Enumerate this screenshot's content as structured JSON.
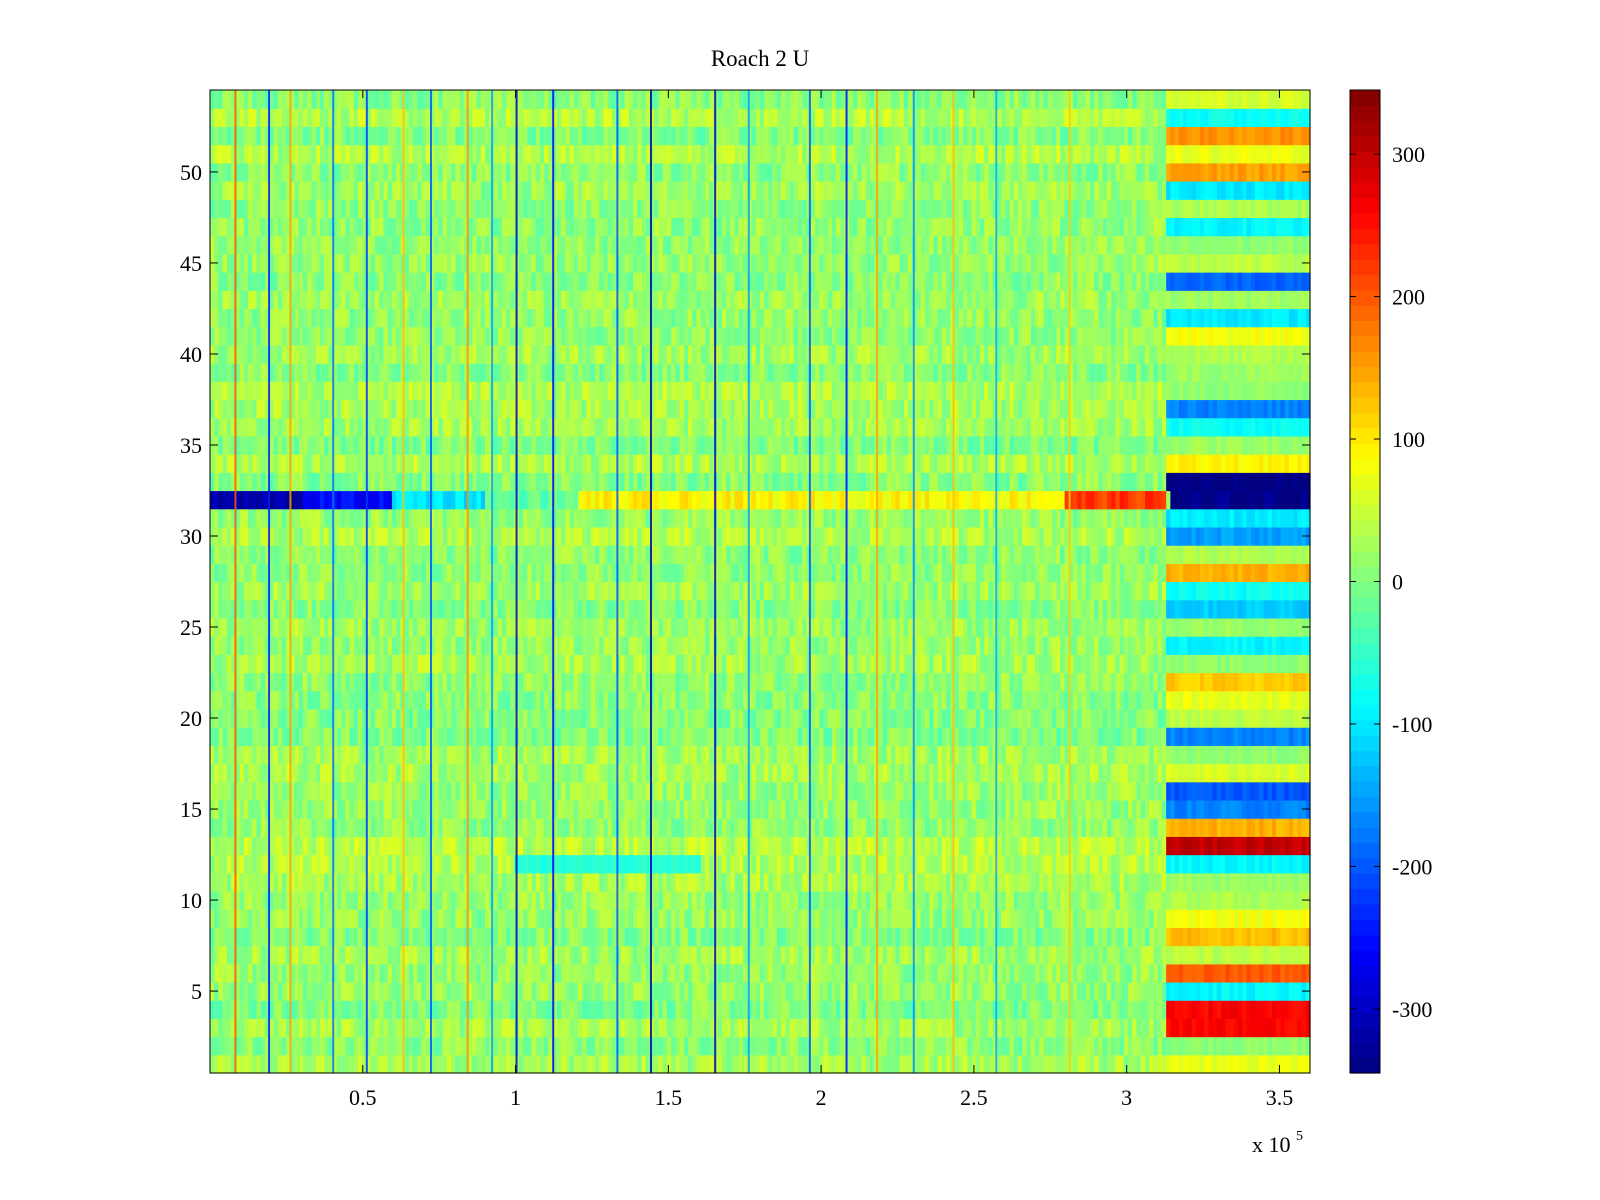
{
  "chart_data": {
    "type": "heatmap",
    "title": "Roach 2 U",
    "xlabel": "",
    "ylabel": "",
    "xlim": [
      0,
      360000
    ],
    "ylim": [
      0.5,
      54.5
    ],
    "rows": 54,
    "x_multiplier_label": "x 10",
    "x_multiplier_exponent": "5",
    "x_ticks": [
      {
        "value": 50000,
        "label": "0.5"
      },
      {
        "value": 100000,
        "label": "1"
      },
      {
        "value": 150000,
        "label": "1.5"
      },
      {
        "value": 200000,
        "label": "2"
      },
      {
        "value": 250000,
        "label": "2.5"
      },
      {
        "value": 300000,
        "label": "3"
      },
      {
        "value": 350000,
        "label": "3.5"
      }
    ],
    "y_ticks": [
      {
        "value": 5,
        "label": "5"
      },
      {
        "value": 10,
        "label": "10"
      },
      {
        "value": 15,
        "label": "15"
      },
      {
        "value": 20,
        "label": "20"
      },
      {
        "value": 25,
        "label": "25"
      },
      {
        "value": 30,
        "label": "30"
      },
      {
        "value": 35,
        "label": "35"
      },
      {
        "value": 40,
        "label": "40"
      },
      {
        "value": 45,
        "label": "45"
      },
      {
        "value": 50,
        "label": "50"
      }
    ],
    "colorbar": {
      "colormap": "jet",
      "clim": [
        -345,
        345
      ],
      "ticks": [
        {
          "value": 300,
          "label": "300"
        },
        {
          "value": 200,
          "label": "200"
        },
        {
          "value": 100,
          "label": "100"
        },
        {
          "value": 0,
          "label": "0"
        },
        {
          "value": -100,
          "label": "-100"
        },
        {
          "value": -200,
          "label": "-200"
        },
        {
          "value": -300,
          "label": "-300"
        }
      ]
    },
    "transition_x": 313000,
    "background_level": 20,
    "highlighted_row": {
      "row": 32,
      "segments": [
        {
          "x0": 0,
          "x1": 30000,
          "value": -320
        },
        {
          "x0": 30000,
          "x1": 60000,
          "value": -260
        },
        {
          "x0": 60000,
          "x1": 90000,
          "value": -100
        },
        {
          "x0": 90000,
          "x1": 120000,
          "value": -20
        },
        {
          "x0": 120000,
          "x1": 280000,
          "value": 90
        },
        {
          "x0": 280000,
          "x1": 313000,
          "value": 220
        },
        {
          "x0": 315000,
          "x1": 360000,
          "value": -345
        }
      ]
    },
    "right_region_rows": [
      {
        "row": 1,
        "value": 70
      },
      {
        "row": 2,
        "value": 10
      },
      {
        "row": 3,
        "value": 260
      },
      {
        "row": 4,
        "value": 260
      },
      {
        "row": 5,
        "value": -90
      },
      {
        "row": 6,
        "value": 200
      },
      {
        "row": 7,
        "value": 40
      },
      {
        "row": 8,
        "value": 130
      },
      {
        "row": 9,
        "value": 80
      },
      {
        "row": 10,
        "value": 30
      },
      {
        "row": 11,
        "value": 20
      },
      {
        "row": 12,
        "value": -90
      },
      {
        "row": 13,
        "value": 300
      },
      {
        "row": 14,
        "value": 140
      },
      {
        "row": 15,
        "value": -170
      },
      {
        "row": 16,
        "value": -200
      },
      {
        "row": 17,
        "value": 60
      },
      {
        "row": 18,
        "value": 10
      },
      {
        "row": 19,
        "value": -170
      },
      {
        "row": 20,
        "value": 40
      },
      {
        "row": 21,
        "value": 70
      },
      {
        "row": 22,
        "value": 120
      },
      {
        "row": 23,
        "value": 10
      },
      {
        "row": 24,
        "value": -90
      },
      {
        "row": 25,
        "value": 20
      },
      {
        "row": 26,
        "value": -120
      },
      {
        "row": 27,
        "value": -80
      },
      {
        "row": 28,
        "value": 140
      },
      {
        "row": 29,
        "value": 30
      },
      {
        "row": 30,
        "value": -150
      },
      {
        "row": 31,
        "value": -100
      },
      {
        "row": 33,
        "value": -345
      },
      {
        "row": 34,
        "value": 90
      },
      {
        "row": 35,
        "value": 20
      },
      {
        "row": 36,
        "value": -80
      },
      {
        "row": 37,
        "value": -170
      },
      {
        "row": 38,
        "value": 10
      },
      {
        "row": 39,
        "value": 20
      },
      {
        "row": 40,
        "value": 30
      },
      {
        "row": 41,
        "value": 80
      },
      {
        "row": 42,
        "value": -100
      },
      {
        "row": 43,
        "value": 20
      },
      {
        "row": 44,
        "value": -190
      },
      {
        "row": 45,
        "value": 40
      },
      {
        "row": 46,
        "value": 10
      },
      {
        "row": 47,
        "value": -90
      },
      {
        "row": 48,
        "value": 30
      },
      {
        "row": 49,
        "value": -100
      },
      {
        "row": 50,
        "value": 150
      },
      {
        "row": 51,
        "value": 70
      },
      {
        "row": 52,
        "value": 160
      },
      {
        "row": 53,
        "value": -80
      },
      {
        "row": 54,
        "value": 60
      }
    ],
    "left_region_rows": [
      {
        "row": 12,
        "x0": 100000,
        "x1": 160000,
        "value": -60
      }
    ],
    "vertical_streaks": [
      {
        "x": 8000,
        "value": 200
      },
      {
        "x": 19000,
        "value": -240
      },
      {
        "x": 26000,
        "value": 150
      },
      {
        "x": 40000,
        "value": -180
      },
      {
        "x": 51000,
        "value": -220
      },
      {
        "x": 63000,
        "value": 130
      },
      {
        "x": 72000,
        "value": -200
      },
      {
        "x": 84000,
        "value": 160
      },
      {
        "x": 92000,
        "value": -150
      },
      {
        "x": 100000,
        "value": -300
      },
      {
        "x": 112000,
        "value": -260
      },
      {
        "x": 133000,
        "value": -200
      },
      {
        "x": 144000,
        "value": -320
      },
      {
        "x": 165000,
        "value": -300
      },
      {
        "x": 176000,
        "value": -150
      },
      {
        "x": 196000,
        "value": -200
      },
      {
        "x": 208000,
        "value": -250
      },
      {
        "x": 218000,
        "value": 150
      },
      {
        "x": 230000,
        "value": -160
      },
      {
        "x": 243000,
        "value": 130
      },
      {
        "x": 257000,
        "value": -140
      },
      {
        "x": 281000,
        "value": 120
      }
    ]
  }
}
